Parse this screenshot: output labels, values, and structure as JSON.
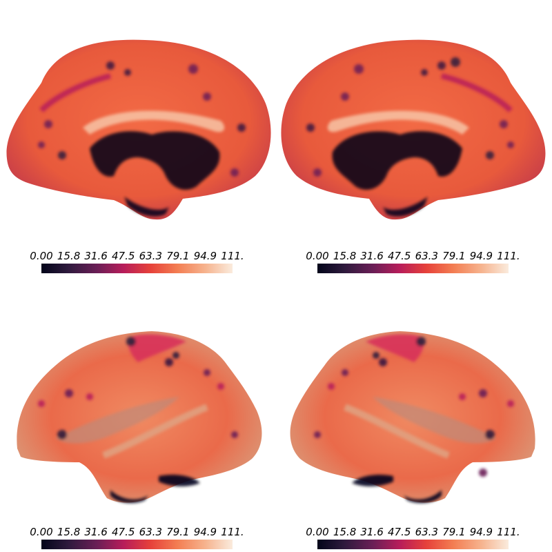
{
  "colormap": {
    "name": "rocket",
    "stops": [
      "#03051a",
      "#2e1a3d",
      "#6a1e56",
      "#b71d5a",
      "#e6413a",
      "#f37d52",
      "#f6b48f",
      "#faebdd"
    ],
    "range": [
      0.0,
      111.0
    ]
  },
  "panels": [
    {
      "view": "left-hemisphere-medial",
      "colorbar_ticks": [
        "0.00",
        "15.8",
        "31.6",
        "47.5",
        "63.3",
        "79.1",
        "94.9",
        "111."
      ]
    },
    {
      "view": "right-hemisphere-medial",
      "colorbar_ticks": [
        "0.00",
        "15.8",
        "31.6",
        "47.5",
        "63.3",
        "79.1",
        "94.9",
        "111."
      ]
    },
    {
      "view": "left-hemisphere-lateral",
      "colorbar_ticks": [
        "0.00",
        "15.8",
        "31.6",
        "47.5",
        "63.3",
        "79.1",
        "94.9",
        "111."
      ]
    },
    {
      "view": "right-hemisphere-lateral",
      "colorbar_ticks": [
        "0.00",
        "15.8",
        "31.6",
        "47.5",
        "63.3",
        "79.1",
        "94.9",
        "111."
      ]
    }
  ]
}
